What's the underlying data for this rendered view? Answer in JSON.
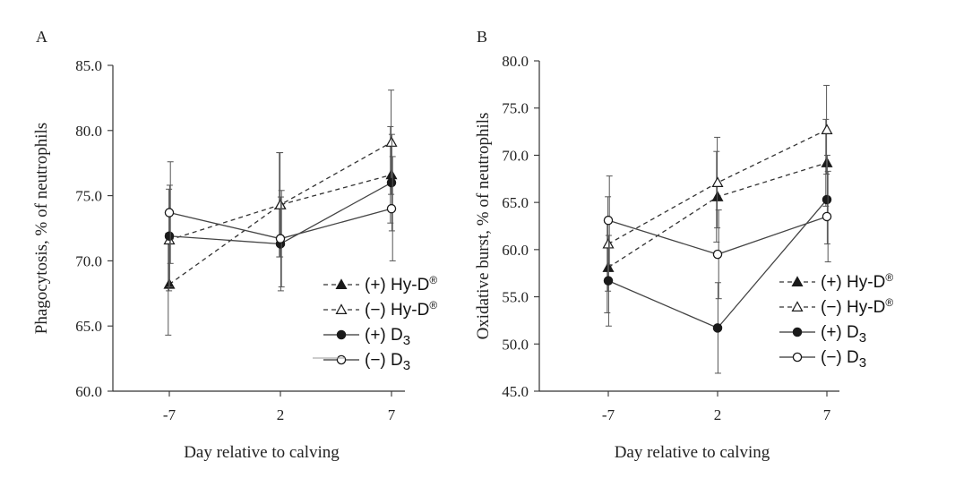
{
  "colors": {
    "ink": "#1a1a1a",
    "axis": "#333333",
    "errorbar": "#555555"
  },
  "legend": [
    {
      "label": "(+) Hy-D",
      "sup": "®",
      "sub": "",
      "marker": "filled-triangle",
      "dash": true
    },
    {
      "label": "(−) Hy-D",
      "sup": "®",
      "sub": "",
      "marker": "open-triangle",
      "dash": true
    },
    {
      "label": "(+) D",
      "sup": "",
      "sub": "3",
      "marker": "filled-circle",
      "dash": false
    },
    {
      "label": "(−) D",
      "sup": "",
      "sub": "3",
      "marker": "open-circle",
      "dash": false
    }
  ],
  "chart_data": [
    {
      "type": "line",
      "panel": "A",
      "title": "",
      "xlabel": "Day relative to calving",
      "ylabel": "Phagocytosis, % of neutrophils",
      "categories": [
        "-7",
        "2",
        "7"
      ],
      "ylim": [
        60,
        85
      ],
      "yticks": [
        "60.0",
        "65.0",
        "70.0",
        "75.0",
        "80.0",
        "85.0"
      ],
      "series": [
        {
          "name": "(+) Hy-D®",
          "marker": "filled-triangle",
          "dash": true,
          "values": [
            68.2,
            74.3,
            76.6
          ],
          "errors": [
            3.9,
            4.0,
            3.7
          ]
        },
        {
          "name": "(−) Hy-D®",
          "marker": "open-triangle",
          "dash": true,
          "values": [
            71.6,
            74.3,
            79.1
          ],
          "errors": [
            3.9,
            4.0,
            4.0
          ]
        },
        {
          "name": "(+) D3",
          "marker": "filled-circle",
          "dash": false,
          "values": [
            71.9,
            71.3,
            76.0
          ],
          "errors": [
            3.9,
            3.6,
            3.7
          ]
        },
        {
          "name": "(−) D3",
          "marker": "open-circle",
          "dash": false,
          "values": [
            73.7,
            71.7,
            74.0
          ],
          "errors": [
            3.9,
            3.7,
            4.0
          ]
        }
      ]
    },
    {
      "type": "line",
      "panel": "B",
      "title": "",
      "xlabel": "Day relative to calving",
      "ylabel": "Oxidative burst, % of neutrophils",
      "categories": [
        "-7",
        "2",
        "7"
      ],
      "ylim": [
        45,
        80
      ],
      "yticks": [
        "45.0",
        "50.0",
        "55.0",
        "60.0",
        "65.0",
        "70.0",
        "75.0",
        "80.0"
      ],
      "series": [
        {
          "name": "(+) Hy-D®",
          "marker": "filled-triangle",
          "dash": true,
          "values": [
            58.1,
            65.6,
            69.2
          ],
          "errors": [
            4.8,
            4.8,
            4.6
          ]
        },
        {
          "name": "(−) Hy-D®",
          "marker": "open-triangle",
          "dash": true,
          "values": [
            60.6,
            67.1,
            72.7
          ],
          "errors": [
            5.0,
            4.8,
            4.7
          ]
        },
        {
          "name": "(+) D3",
          "marker": "filled-circle",
          "dash": false,
          "values": [
            56.7,
            51.7,
            65.3
          ],
          "errors": [
            4.8,
            4.8,
            4.7
          ]
        },
        {
          "name": "(−) D3",
          "marker": "open-circle",
          "dash": false,
          "values": [
            63.1,
            59.5,
            63.5
          ],
          "errors": [
            4.7,
            4.7,
            4.8
          ]
        }
      ]
    }
  ]
}
